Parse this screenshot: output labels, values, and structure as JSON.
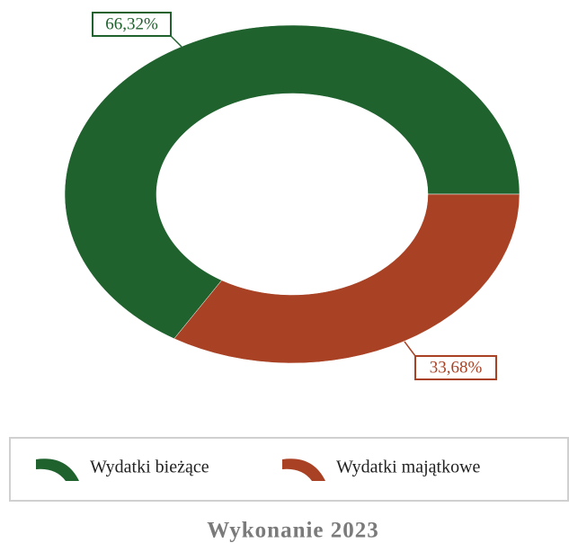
{
  "chart_data": {
    "type": "donut",
    "title": "Wykonanie 2023",
    "categories": [
      "Wydatki bieżące",
      "Wydatki majątkowe"
    ],
    "values": [
      66.32,
      33.68
    ],
    "value_labels": [
      "66,32%",
      "33,68%"
    ],
    "colors": [
      "#1f622e",
      "#a94225"
    ]
  }
}
